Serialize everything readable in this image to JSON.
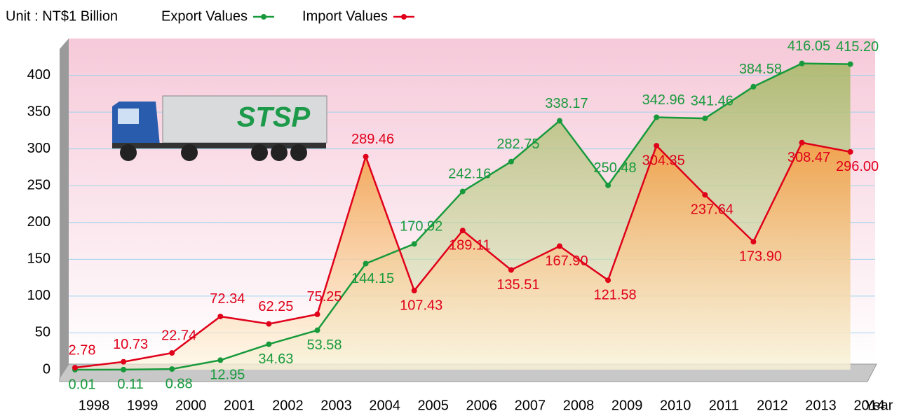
{
  "chart_data": {
    "type": "line",
    "title": "Unit : NT$1 Billion",
    "x_label": "Year",
    "annotations": [
      "STSP"
    ],
    "categories": [
      "1998",
      "1999",
      "2000",
      "2001",
      "2002",
      "2003",
      "2004",
      "2005",
      "2006",
      "2007",
      "2008",
      "2009",
      "2010",
      "2011",
      "2012",
      "2013",
      "2014"
    ],
    "series": [
      {
        "name": "Export Values",
        "color": "#189a3c",
        "values": [
          0.01,
          0.11,
          0.88,
          12.95,
          34.63,
          53.58,
          144.15,
          170.92,
          242.16,
          282.75,
          338.17,
          250.48,
          342.96,
          341.46,
          384.58,
          416.05,
          415.2
        ],
        "value_labels": [
          "0.01",
          "0.11",
          "0.88",
          "12.95",
          "34.63",
          "53.58",
          "144.15",
          "170.92",
          "242.16",
          "282.75",
          "338.17",
          "250.48",
          "342.96",
          "341.46",
          "384.58",
          "416.05",
          "415.20"
        ]
      },
      {
        "name": "Import Values",
        "color": "#e0001a",
        "values": [
          2.78,
          10.73,
          22.74,
          72.34,
          62.25,
          75.25,
          289.46,
          107.43,
          189.11,
          135.51,
          167.9,
          121.58,
          304.35,
          237.64,
          173.9,
          308.47,
          296.0
        ],
        "value_labels": [
          "2.78",
          "10.73",
          "22.74",
          "72.34",
          "62.25",
          "75.25",
          "289.46",
          "107.43",
          "189.11",
          "135.51",
          "167.90",
          "121.58",
          "304.35",
          "237.64",
          "173.90",
          "308.47",
          "296.00"
        ]
      }
    ],
    "ylim": [
      0,
      450
    ],
    "yticks": [
      0,
      50,
      100,
      150,
      200,
      250,
      300,
      350,
      400
    ],
    "grid": true,
    "legend": "top"
  }
}
